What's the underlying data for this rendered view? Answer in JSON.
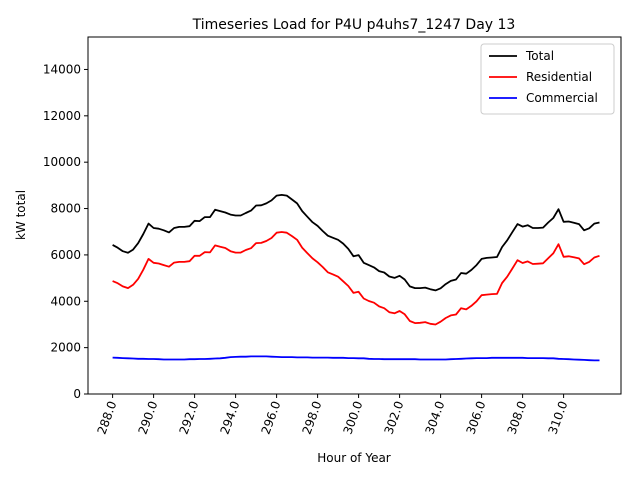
{
  "chart_data": {
    "type": "line",
    "title": "Timeseries Load for P4U p4uhs7_1247  Day 13",
    "xlabel": "Hour of Year",
    "ylabel": "kW total",
    "xlim": [
      286.8,
      312.8
    ],
    "ylim": [
      0,
      15400
    ],
    "xticks": [
      288.0,
      290.0,
      292.0,
      294.0,
      296.0,
      298.0,
      300.0,
      302.0,
      304.0,
      306.0,
      308.0,
      310.0
    ],
    "xtick_labels": [
      "288.0",
      "290.0",
      "292.0",
      "294.0",
      "296.0",
      "298.0",
      "300.0",
      "302.0",
      "304.0",
      "306.0",
      "308.0",
      "310.0"
    ],
    "yticks": [
      0,
      2000,
      4000,
      6000,
      8000,
      10000,
      12000,
      14000
    ],
    "ytick_labels": [
      "0",
      "2000",
      "4000",
      "6000",
      "8000",
      "10000",
      "12000",
      "14000"
    ],
    "grid": false,
    "legend_position": "top-right",
    "x": [
      288.0,
      288.25,
      288.5,
      288.75,
      289.0,
      289.25,
      289.5,
      289.75,
      290.0,
      290.25,
      290.5,
      290.75,
      291.0,
      291.25,
      291.5,
      291.75,
      292.0,
      292.25,
      292.5,
      292.75,
      293.0,
      293.25,
      293.5,
      293.75,
      294.0,
      294.25,
      294.5,
      294.75,
      295.0,
      295.25,
      295.5,
      295.75,
      296.0,
      296.25,
      296.5,
      296.75,
      297.0,
      297.25,
      297.5,
      297.75,
      298.0,
      298.25,
      298.5,
      298.75,
      299.0,
      299.25,
      299.5,
      299.75,
      300.0,
      300.25,
      300.5,
      300.75,
      301.0,
      301.25,
      301.5,
      301.75,
      302.0,
      302.25,
      302.5,
      302.75,
      303.0,
      303.25,
      303.5,
      303.75,
      304.0,
      304.25,
      304.5,
      304.75,
      305.0,
      305.25,
      305.5,
      305.75,
      306.0,
      306.25,
      306.5,
      306.75,
      307.0,
      307.25,
      307.5,
      307.75,
      308.0,
      308.25,
      308.5,
      308.75,
      309.0,
      309.25,
      309.5,
      309.75,
      310.0,
      310.25,
      310.5,
      310.75,
      311.0,
      311.25,
      311.5,
      311.75
    ],
    "series": [
      {
        "name": "Total",
        "color": "#000000",
        "values": [
          6430,
          6310,
          6160,
          6090,
          6230,
          6510,
          6900,
          7350,
          7160,
          7130,
          7060,
          6970,
          7160,
          7210,
          7210,
          7240,
          7470,
          7460,
          7630,
          7630,
          7950,
          7890,
          7830,
          7740,
          7700,
          7700,
          7810,
          7910,
          8130,
          8140,
          8220,
          8350,
          8560,
          8590,
          8560,
          8390,
          8220,
          7890,
          7650,
          7410,
          7250,
          7030,
          6830,
          6740,
          6650,
          6490,
          6260,
          5940,
          5990,
          5660,
          5560,
          5460,
          5300,
          5240,
          5070,
          5010,
          5100,
          4940,
          4640,
          4570,
          4570,
          4590,
          4520,
          4470,
          4560,
          4740,
          4880,
          4940,
          5220,
          5190,
          5350,
          5560,
          5830,
          5870,
          5890,
          5910,
          6340,
          6630,
          6980,
          7330,
          7220,
          7280,
          7160,
          7160,
          7180,
          7400,
          7590,
          7970,
          7430,
          7440,
          7390,
          7330,
          7060,
          7150,
          7350,
          7400
        ]
      },
      {
        "name": "Residential",
        "color": "#ff0000",
        "values": [
          4870,
          4780,
          4640,
          4570,
          4710,
          4970,
          5360,
          5830,
          5660,
          5630,
          5560,
          5490,
          5670,
          5700,
          5700,
          5730,
          5960,
          5960,
          6120,
          6110,
          6410,
          6350,
          6300,
          6160,
          6100,
          6100,
          6210,
          6290,
          6510,
          6520,
          6600,
          6730,
          6960,
          6990,
          6960,
          6810,
          6650,
          6310,
          6080,
          5850,
          5680,
          5480,
          5250,
          5160,
          5060,
          4860,
          4660,
          4360,
          4410,
          4120,
          4010,
          3940,
          3780,
          3700,
          3530,
          3480,
          3580,
          3440,
          3150,
          3060,
          3070,
          3100,
          3030,
          3000,
          3120,
          3280,
          3390,
          3430,
          3700,
          3650,
          3800,
          4000,
          4260,
          4290,
          4310,
          4320,
          4790,
          5060,
          5410,
          5770,
          5650,
          5720,
          5610,
          5620,
          5640,
          5860,
          6070,
          6460,
          5920,
          5940,
          5900,
          5850,
          5600,
          5700,
          5890,
          5960
        ]
      },
      {
        "name": "Commercial",
        "color": "#0000ff",
        "values": [
          1570,
          1560,
          1550,
          1540,
          1530,
          1520,
          1520,
          1510,
          1510,
          1500,
          1490,
          1490,
          1490,
          1490,
          1490,
          1500,
          1500,
          1510,
          1510,
          1520,
          1530,
          1540,
          1560,
          1590,
          1600,
          1610,
          1610,
          1620,
          1620,
          1620,
          1620,
          1610,
          1600,
          1590,
          1590,
          1590,
          1580,
          1580,
          1580,
          1570,
          1570,
          1570,
          1570,
          1560,
          1560,
          1560,
          1550,
          1550,
          1540,
          1540,
          1520,
          1510,
          1510,
          1500,
          1500,
          1500,
          1500,
          1500,
          1500,
          1500,
          1490,
          1490,
          1490,
          1490,
          1490,
          1490,
          1500,
          1510,
          1520,
          1530,
          1540,
          1550,
          1550,
          1550,
          1560,
          1560,
          1560,
          1560,
          1560,
          1560,
          1560,
          1550,
          1550,
          1550,
          1550,
          1540,
          1540,
          1520,
          1510,
          1500,
          1490,
          1480,
          1470,
          1460,
          1450,
          1450
        ]
      }
    ]
  }
}
